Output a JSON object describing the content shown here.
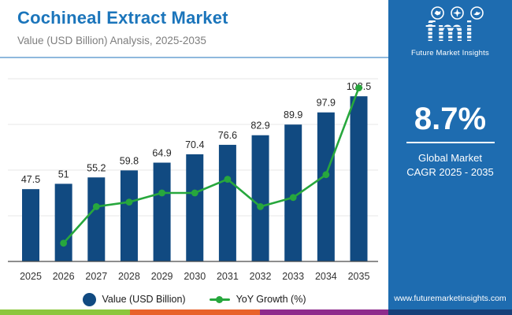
{
  "header": {
    "title": "Cochineal Extract Market",
    "subtitle": "Value (USD Billion) Analysis, 2025-2035",
    "title_color": "#1b75bb"
  },
  "logo": {
    "text": "fmi",
    "tagline": "Future Market Insights",
    "icons": [
      "map-icon",
      "star-icon",
      "dove-icon"
    ]
  },
  "sidebar": {
    "background": "#1e6cb0",
    "stat_value": "8.7%",
    "stat_label_line1": "Global Market",
    "stat_label_line2": "CAGR 2025 - 2035",
    "website": "www.futuremarketinsights.com"
  },
  "legend": [
    {
      "label": "Value (USD Billion)",
      "marker": "circle",
      "color": "#114a81"
    },
    {
      "label": "YoY Growth (%)",
      "marker": "line-dot",
      "color": "#27a73d"
    }
  ],
  "chart_data": {
    "type": "bar",
    "title": "Cochineal Extract Market Value (USD Billion), 2025-2035",
    "categories": [
      "2025",
      "2026",
      "2027",
      "2028",
      "2029",
      "2030",
      "2031",
      "2032",
      "2033",
      "2034",
      "2035"
    ],
    "series": [
      {
        "name": "Value (USD Billion)",
        "type": "bar",
        "color": "#114a81",
        "values": [
          47.5,
          51,
          55.2,
          59.8,
          64.9,
          70.4,
          76.6,
          82.9,
          89.9,
          97.9,
          108.5
        ],
        "labels": [
          "47.5",
          "51",
          "55.2",
          "59.8",
          "64.9",
          "70.4",
          "76.6",
          "82.9",
          "89.9",
          "97.9",
          "108.5"
        ],
        "ylim": [
          0,
          120
        ],
        "gridstep": 30
      },
      {
        "name": "YoY Growth (%)",
        "type": "line",
        "color": "#27a73d",
        "values": [
          null,
          7.4,
          8.2,
          8.3,
          8.5,
          8.5,
          8.8,
          8.2,
          8.4,
          8.9,
          10.8
        ],
        "ylim": [
          7,
          11
        ],
        "gridstep": 1
      }
    ],
    "grid": true,
    "y_axis_labels_visible": false,
    "legend_position": "bottom",
    "colors": {
      "grid": "#e7e7e7",
      "axis": "#4a4a4a",
      "value_label": "#262626",
      "tick_label": "#333333"
    }
  },
  "footer_strip": {
    "segments": [
      "#8cc63e",
      "#e8622a",
      "#8e2b8c"
    ],
    "right_segment": "#163f78"
  }
}
